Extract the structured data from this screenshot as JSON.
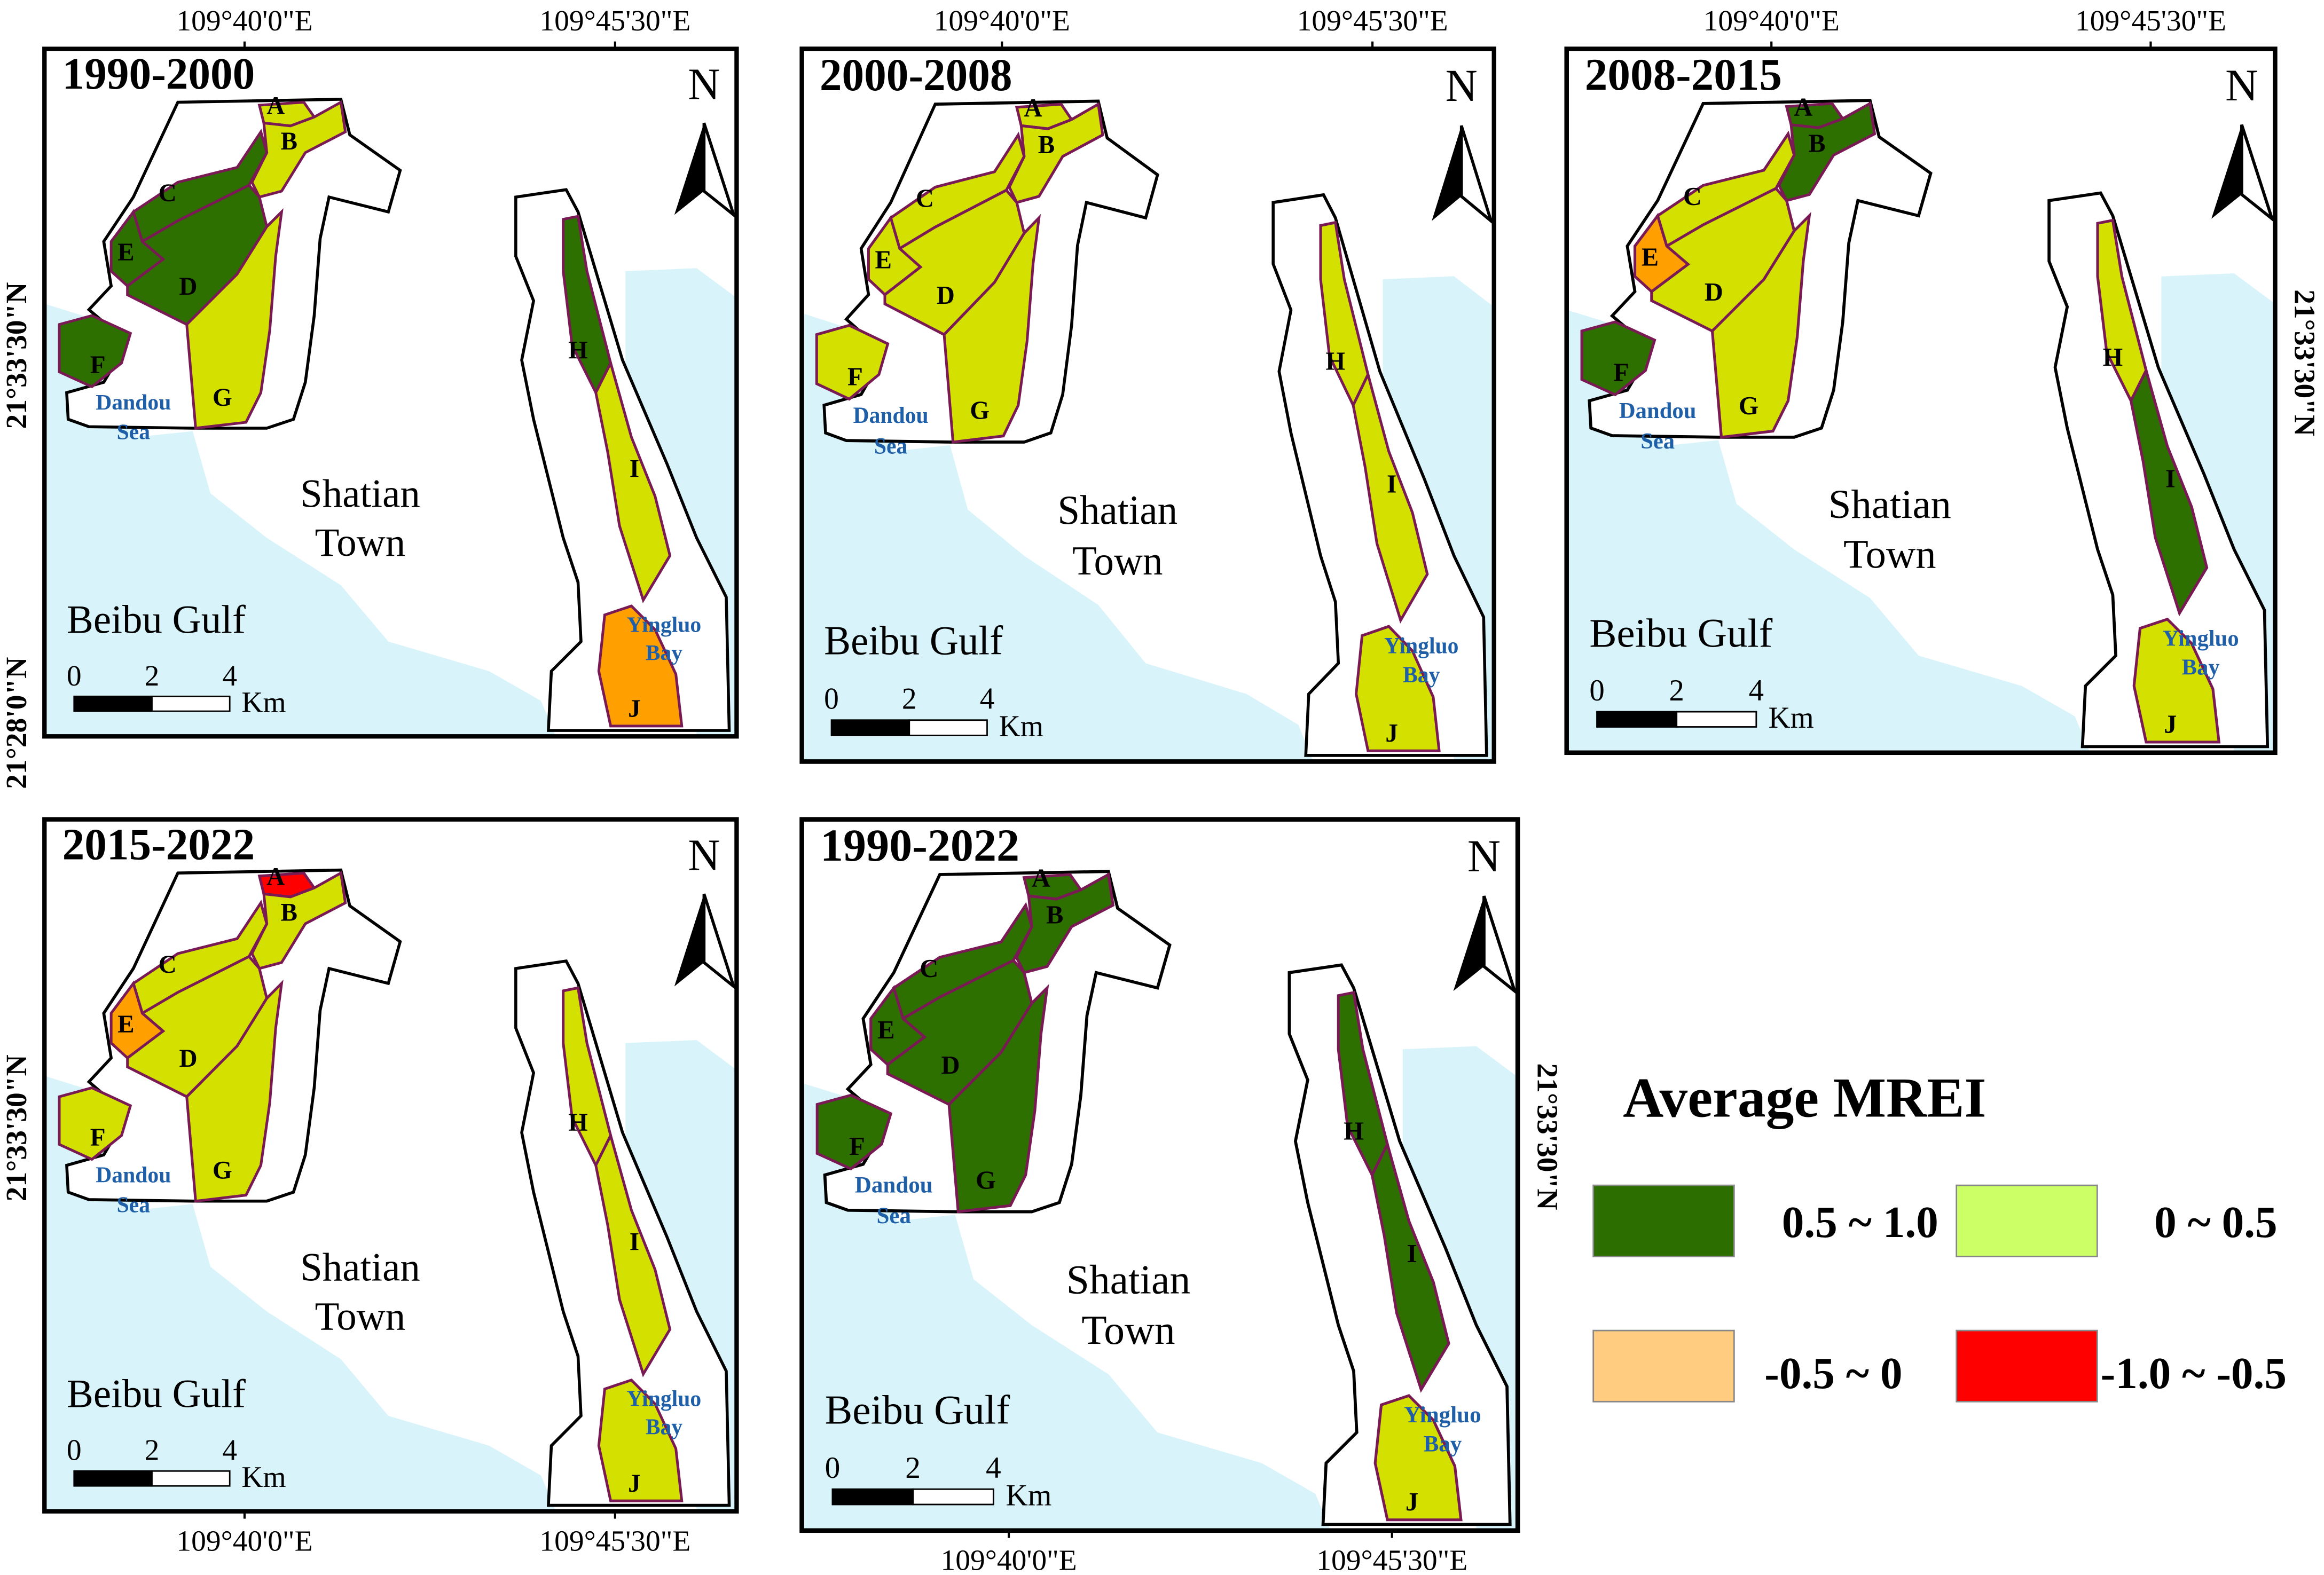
{
  "panels": [
    {
      "title": "1990-2000",
      "regions": [
        {
          "label": "A",
          "color": "#d4e000"
        },
        {
          "label": "B",
          "color": "#d4e000"
        },
        {
          "label": "C",
          "color": "#2d7000"
        },
        {
          "label": "D",
          "color": "#2d7000"
        },
        {
          "label": "E",
          "color": "#2d7000"
        },
        {
          "label": "F",
          "color": "#2d7000"
        },
        {
          "label": "G",
          "color": "#d4e000"
        },
        {
          "label": "H",
          "color": "#2d7000"
        },
        {
          "label": "I",
          "color": "#d4e000"
        },
        {
          "label": "J",
          "color": "#ff9f00"
        }
      ]
    },
    {
      "title": "2000-2008",
      "regions": [
        {
          "label": "A",
          "color": "#d4e000"
        },
        {
          "label": "B",
          "color": "#d4e000"
        },
        {
          "label": "C",
          "color": "#d4e000"
        },
        {
          "label": "D",
          "color": "#d4e000"
        },
        {
          "label": "E",
          "color": "#d4e000"
        },
        {
          "label": "F",
          "color": "#d4e000"
        },
        {
          "label": "G",
          "color": "#d4e000"
        },
        {
          "label": "H",
          "color": "#d4e000"
        },
        {
          "label": "I",
          "color": "#d4e000"
        },
        {
          "label": "J",
          "color": "#d4e000"
        }
      ]
    },
    {
      "title": "2008-2015",
      "regions": [
        {
          "label": "A",
          "color": "#2d7000"
        },
        {
          "label": "B",
          "color": "#2d7000"
        },
        {
          "label": "C",
          "color": "#d4e000"
        },
        {
          "label": "D",
          "color": "#d4e000"
        },
        {
          "label": "E",
          "color": "#ff9f00"
        },
        {
          "label": "F",
          "color": "#2d7000"
        },
        {
          "label": "G",
          "color": "#d4e000"
        },
        {
          "label": "H",
          "color": "#d4e000"
        },
        {
          "label": "I",
          "color": "#2d7000"
        },
        {
          "label": "J",
          "color": "#d4e000"
        }
      ]
    },
    {
      "title": "2015-2022",
      "regions": [
        {
          "label": "A",
          "color": "#ff0000"
        },
        {
          "label": "B",
          "color": "#d4e000"
        },
        {
          "label": "C",
          "color": "#d4e000"
        },
        {
          "label": "D",
          "color": "#d4e000"
        },
        {
          "label": "E",
          "color": "#ff9f00"
        },
        {
          "label": "F",
          "color": "#d4e000"
        },
        {
          "label": "G",
          "color": "#d4e000"
        },
        {
          "label": "H",
          "color": "#d4e000"
        },
        {
          "label": "I",
          "color": "#d4e000"
        },
        {
          "label": "J",
          "color": "#d4e000"
        }
      ]
    },
    {
      "title": "1990-2022",
      "regions": [
        {
          "label": "A",
          "color": "#2d7000"
        },
        {
          "label": "B",
          "color": "#2d7000"
        },
        {
          "label": "C",
          "color": "#2d7000"
        },
        {
          "label": "D",
          "color": "#2d7000"
        },
        {
          "label": "E",
          "color": "#2d7000"
        },
        {
          "label": "F",
          "color": "#2d7000"
        },
        {
          "label": "G",
          "color": "#2d7000"
        },
        {
          "label": "H",
          "color": "#2d7000"
        },
        {
          "label": "I",
          "color": "#2d7000"
        },
        {
          "label": "J",
          "color": "#d4e000"
        }
      ]
    }
  ],
  "places": {
    "gulf": "Beibu Gulf",
    "town": [
      "Shatian",
      "Town"
    ],
    "sea": [
      "Dandou",
      "Sea"
    ],
    "bay": [
      "Yingluo",
      "Bay"
    ]
  },
  "north": "N",
  "scale": {
    "ticks": [
      0,
      2,
      4
    ],
    "unit": "Km"
  },
  "graticule": {
    "lon": [
      "109°40'0\"E",
      "109°45'30\"E"
    ],
    "lat": [
      "21°33'30\"N",
      "21°28'0\"N"
    ]
  },
  "legend": {
    "title": "Average MREI",
    "items": [
      {
        "label": "0.5 ~ 1.0",
        "color": "#2d6e00"
      },
      {
        "label": "0 ~ 0.5",
        "color": "#ccff66"
      },
      {
        "label": "-0.5 ~ 0",
        "color": "#ffcc80"
      },
      {
        "label": "-1.0 ~ -0.5",
        "color": "#ff0000"
      }
    ]
  }
}
